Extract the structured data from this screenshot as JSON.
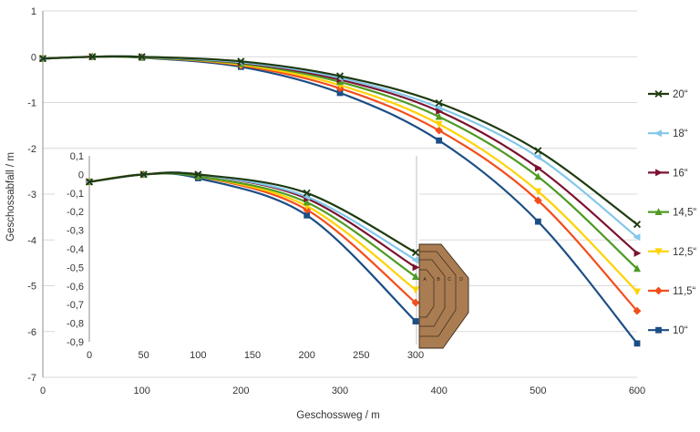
{
  "chart_data": [
    {
      "type": "line",
      "xlabel": "Geschossweg / m",
      "ylabel": "Geschossabfall / m",
      "xlim": [
        0,
        600
      ],
      "ylim": [
        -7,
        1
      ],
      "xtick_labels": [
        "0",
        "100",
        "200",
        "300",
        "400",
        "500",
        "600"
      ],
      "ytick_labels": [
        "1",
        "0",
        "-1",
        "-2",
        "-3",
        "-4",
        "-5",
        "-6",
        "-7"
      ],
      "grid": true,
      "legend": "right",
      "x": [
        0,
        50,
        100,
        200,
        300,
        400,
        500,
        600
      ],
      "series": [
        {
          "name": "20“",
          "color": "#1f3b10",
          "marker": "x",
          "values": [
            -0.04,
            0,
            0,
            -0.1,
            -0.42,
            -1.01,
            -2.05,
            -3.66
          ]
        },
        {
          "name": "18“",
          "color": "#83c7eb",
          "marker": "triangle-left",
          "values": [
            -0.04,
            0,
            0,
            -0.12,
            -0.46,
            -1.11,
            -2.19,
            -3.94
          ]
        },
        {
          "name": "16“",
          "color": "#7b1230",
          "marker": "triangle-right",
          "values": [
            -0.04,
            0,
            0,
            -0.13,
            -0.5,
            -1.19,
            -2.43,
            -4.29
          ]
        },
        {
          "name": "14,5“",
          "color": "#4e9a24",
          "marker": "triangle-up",
          "values": [
            -0.04,
            0,
            -0.01,
            -0.15,
            -0.55,
            -1.31,
            -2.62,
            -4.63
          ]
        },
        {
          "name": "12,5“",
          "color": "#ffd200",
          "marker": "triangle-down",
          "values": [
            -0.04,
            0,
            -0.01,
            -0.17,
            -0.62,
            -1.47,
            -2.94,
            -5.13
          ]
        },
        {
          "name": "11,5“",
          "color": "#f24e1d",
          "marker": "diamond",
          "values": [
            -0.04,
            0,
            -0.01,
            -0.19,
            -0.69,
            -1.61,
            -3.14,
            -5.55
          ]
        },
        {
          "name": "10“",
          "color": "#1b4e85",
          "marker": "square",
          "values": [
            -0.04,
            0,
            -0.02,
            -0.22,
            -0.79,
            -1.83,
            -3.6,
            -6.26
          ]
        }
      ]
    },
    {
      "type": "line",
      "xlim": [
        0,
        300
      ],
      "ylim": [
        -0.9,
        0.1
      ],
      "xtick_labels": [
        "0",
        "50",
        "100",
        "150",
        "200",
        "250",
        "300"
      ],
      "ytick_labels": [
        "0,1",
        "0",
        "-0,1",
        "-0,2",
        "-0,3",
        "-0,4",
        "-0,5",
        "-0,6",
        "-0,7",
        "-0,8",
        "-0,9"
      ],
      "grid": false,
      "x": [
        0,
        50,
        100,
        200,
        300
      ],
      "series": [
        {
          "color": "#1f3b10",
          "marker": "x",
          "values": [
            -0.04,
            0,
            0,
            -0.1,
            -0.42
          ]
        },
        {
          "color": "#83c7eb",
          "marker": "triangle-left",
          "values": [
            -0.04,
            0,
            0,
            -0.12,
            -0.46
          ]
        },
        {
          "color": "#7b1230",
          "marker": "triangle-right",
          "values": [
            -0.04,
            0,
            0,
            -0.13,
            -0.5
          ]
        },
        {
          "color": "#4e9a24",
          "marker": "triangle-up",
          "values": [
            -0.04,
            0,
            -0.01,
            -0.15,
            -0.55
          ]
        },
        {
          "color": "#ffd200",
          "marker": "triangle-down",
          "values": [
            -0.04,
            0,
            -0.01,
            -0.17,
            -0.62
          ]
        },
        {
          "color": "#f24e1d",
          "marker": "diamond",
          "values": [
            -0.04,
            0,
            -0.01,
            -0.19,
            -0.69
          ]
        },
        {
          "color": "#1b4e85",
          "marker": "square",
          "values": [
            -0.04,
            0,
            -0.02,
            -0.22,
            -0.79
          ]
        }
      ]
    }
  ],
  "target": {
    "zone_labels": [
      "A",
      "B",
      "C",
      "D"
    ],
    "fill": "#a97c52",
    "outline": "#3d2a18"
  }
}
